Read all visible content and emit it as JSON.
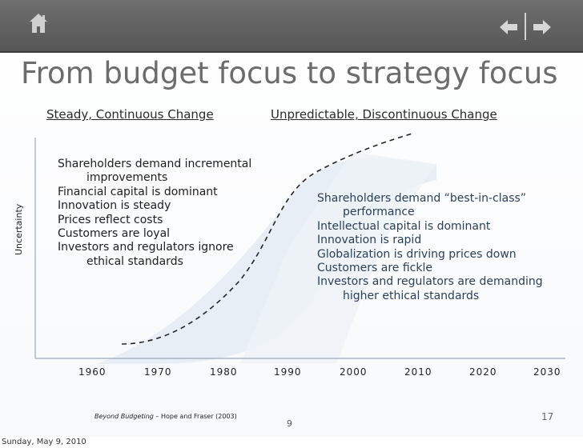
{
  "slide": {
    "title": "From budget focus to strategy focus",
    "left_heading": "Steady, Continuous Change",
    "right_heading": "Unpredictable, Discontinuous Change",
    "y_axis_label": "Uncertainty",
    "x_ticks": [
      "1960",
      "1970",
      "1980",
      "1990",
      "2000",
      "2010",
      "2020",
      "2030"
    ],
    "left_points": [
      {
        "text": "Shareholders demand incremental",
        "cont": "improvements"
      },
      {
        "text": "Financial capital is dominant"
      },
      {
        "text": "Innovation is steady"
      },
      {
        "text": "Prices reflect costs"
      },
      {
        "text": "Customers are loyal"
      },
      {
        "text": "Investors and regulators ignore",
        "cont": "ethical standards"
      }
    ],
    "right_points": [
      {
        "text": "Shareholders demand “best-in-class”",
        "cont": "performance"
      },
      {
        "text": "Intellectual capital is dominant"
      },
      {
        "text": "Innovation is rapid"
      },
      {
        "text": "Globalization is driving prices down"
      },
      {
        "text": "Customers are fickle"
      },
      {
        "text": "Investors and regulators are demanding",
        "cont": "higher ethical standards"
      }
    ],
    "citation_title": "Beyond Budgeting",
    "citation_rest": " – Hope and Fraser (2003)",
    "inner_page_number": "9",
    "page_number": "17"
  },
  "footer": {
    "date": "Sunday, May 9, 2010"
  },
  "nav": {
    "home": "home-icon",
    "back": "arrow-left-icon",
    "forward": "arrow-right-icon"
  },
  "colors": {
    "bar": "#5f5f5f",
    "title": "#6c6c6c",
    "right_text": "#2a3f57",
    "bg_shape": "#e6edf4"
  }
}
